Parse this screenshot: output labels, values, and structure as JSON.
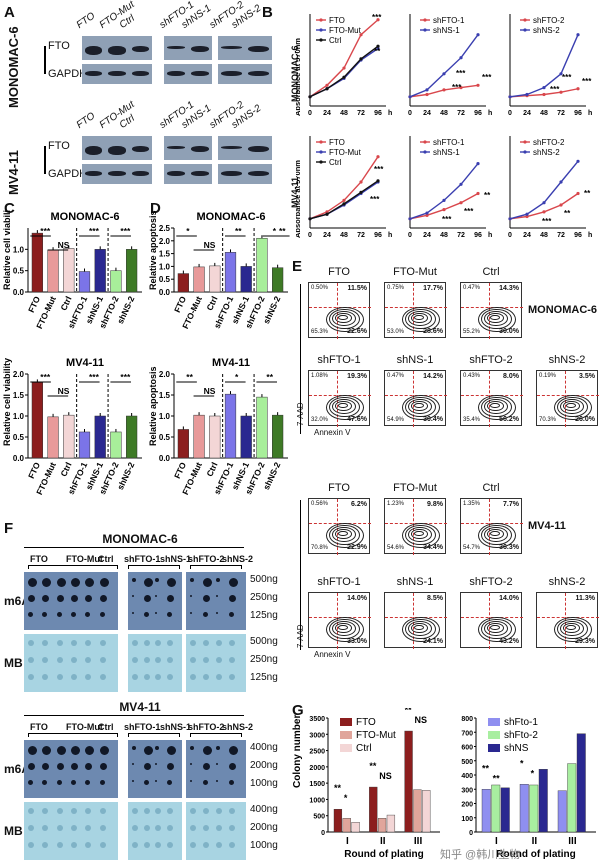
{
  "panels": {
    "A": "A",
    "B": "B",
    "C": "C",
    "D": "D",
    "E": "E",
    "F": "F",
    "G": "G"
  },
  "cell_lines": {
    "mono": "MONOMAC-6",
    "mv": "MV4-11"
  },
  "panelA": {
    "lanes_left": [
      "FTO",
      "FTO-Mut",
      "Ctrl"
    ],
    "lanes_mid": [
      "shFTO-1",
      "shNS-1"
    ],
    "lanes_right": [
      "shFTO-2",
      "shNS-2"
    ],
    "proteins": [
      "FTO",
      "GAPDH"
    ]
  },
  "panelB": {
    "ylabel": "Absorbance at 570nm",
    "xticks": [
      "0",
      "24",
      "48",
      "72",
      "96"
    ],
    "xunit": "h",
    "stars": [
      "***",
      "**",
      "***",
      "***",
      "***",
      "***",
      "***",
      "***",
      "***",
      "***",
      "**",
      "***",
      "***",
      "**",
      "**",
      "***"
    ],
    "legends": [
      [
        "FTO",
        "FTO-Mut",
        "Ctrl"
      ],
      [
        "shFTO-1",
        "shNS-1"
      ],
      [
        "shFTO-2",
        "shNS-2"
      ]
    ],
    "colors": {
      "red": "#d9474c",
      "blue": "#3a3fb0",
      "black": "#111111"
    },
    "chart_data": [
      {
        "type": "line",
        "row": "MONOMAC-6",
        "x": [
          0,
          24,
          48,
          72,
          96
        ],
        "series": [
          {
            "name": "FTO",
            "values": [
              0.08,
              0.18,
              0.33,
              0.62,
              0.75
            ]
          },
          {
            "name": "FTO-Mut",
            "values": [
              0.08,
              0.15,
              0.24,
              0.4,
              0.5
            ]
          },
          {
            "name": "Ctrl",
            "values": [
              0.08,
              0.15,
              0.25,
              0.41,
              0.52
            ]
          }
        ]
      },
      {
        "type": "line",
        "row": "MONOMAC-6",
        "x": [
          0,
          24,
          48,
          72,
          96
        ],
        "series": [
          {
            "name": "shFTO-1",
            "values": [
              0.08,
              0.1,
              0.14,
              0.16,
              0.18
            ]
          },
          {
            "name": "shNS-1",
            "values": [
              0.08,
              0.14,
              0.28,
              0.42,
              0.62
            ]
          }
        ]
      },
      {
        "type": "line",
        "row": "MONOMAC-6",
        "x": [
          0,
          24,
          48,
          72,
          96
        ],
        "series": [
          {
            "name": "shFTO-2",
            "values": [
              0.08,
              0.09,
              0.1,
              0.12,
              0.15
            ]
          },
          {
            "name": "shNS-2",
            "values": [
              0.08,
              0.1,
              0.16,
              0.28,
              0.62
            ]
          }
        ]
      },
      {
        "type": "line",
        "row": "MV4-11",
        "x": [
          0,
          24,
          48,
          72,
          96
        ],
        "series": [
          {
            "name": "FTO",
            "values": [
              0.08,
              0.14,
              0.24,
              0.4,
              0.62
            ]
          },
          {
            "name": "FTO-Mut",
            "values": [
              0.08,
              0.12,
              0.2,
              0.3,
              0.4
            ]
          },
          {
            "name": "Ctrl",
            "values": [
              0.08,
              0.12,
              0.21,
              0.31,
              0.41
            ]
          }
        ]
      },
      {
        "type": "line",
        "row": "MV4-11",
        "x": [
          0,
          24,
          48,
          72,
          96
        ],
        "series": [
          {
            "name": "shFTO-1",
            "values": [
              0.08,
              0.11,
              0.16,
              0.22,
              0.3
            ]
          },
          {
            "name": "shNS-1",
            "values": [
              0.08,
              0.13,
              0.24,
              0.38,
              0.56
            ]
          }
        ]
      },
      {
        "type": "line",
        "row": "MV4-11",
        "x": [
          0,
          24,
          48,
          72,
          96
        ],
        "series": [
          {
            "name": "shFTO-2",
            "values": [
              0.08,
              0.1,
              0.14,
              0.2,
              0.3
            ]
          },
          {
            "name": "shNS-2",
            "values": [
              0.08,
              0.12,
              0.22,
              0.4,
              0.58
            ]
          }
        ]
      }
    ]
  },
  "panelC": {
    "ylabel": "Relative cell viability",
    "categories": [
      "FTO",
      "FTO-Mut",
      "Ctrl",
      "shFTO-1",
      "shNS-1",
      "shFTO-2",
      "shNS-2"
    ],
    "colors": [
      "#8c1e1e",
      "#e89a9a",
      "#f3d6d6",
      "#7b74e8",
      "#2a2890",
      "#a8ee9a",
      "#3e7a26"
    ],
    "chart_data": [
      {
        "type": "bar",
        "title": "MONOMAC-6",
        "values": [
          1.38,
          0.98,
          1.02,
          0.48,
          1.0,
          0.5,
          1.0
        ],
        "ylim": [
          0,
          1.5
        ],
        "yticks": [
          "0.0",
          "0.5",
          "1.0"
        ],
        "stars": [
          "***",
          "NS",
          "***",
          "***"
        ]
      },
      {
        "type": "bar",
        "title": "MV4-11",
        "values": [
          1.8,
          0.98,
          1.02,
          0.62,
          1.0,
          0.62,
          1.0
        ],
        "ylim": [
          0,
          2.0
        ],
        "yticks": [
          "0.0",
          "0.5",
          "1.0",
          "1.5",
          "2.0"
        ],
        "stars": [
          "***",
          "NS",
          "***",
          "***"
        ]
      }
    ]
  },
  "panelD": {
    "ylabel": "Relative apoptosis",
    "categories": [
      "FTO",
      "FTO-Mut",
      "Ctrl",
      "shFTO-1",
      "shNS-1",
      "shFTO-2",
      "shNS-2"
    ],
    "chart_data": [
      {
        "type": "bar",
        "title": "MONOMAC-6",
        "values": [
          0.72,
          0.98,
          1.02,
          1.55,
          1.0,
          2.1,
          0.95
        ],
        "ylim": [
          0,
          2.5
        ],
        "yticks": [
          "0.0",
          "0.5",
          "1.0",
          "1.5",
          "2.0",
          "2.5"
        ],
        "stars": [
          "*",
          "NS",
          "**",
          "*",
          "**"
        ]
      },
      {
        "type": "bar",
        "title": "MV4-11",
        "values": [
          0.68,
          1.02,
          1.0,
          1.52,
          1.0,
          1.45,
          1.02
        ],
        "ylim": [
          0,
          2.0
        ],
        "yticks": [
          "0.0",
          "0.5",
          "1.0",
          "1.5",
          "2.0"
        ],
        "stars": [
          "**",
          "NS",
          "*",
          "**"
        ]
      }
    ]
  },
  "panelE": {
    "xlab": "Annexin V",
    "ylab": "7-AAD",
    "mono": [
      {
        "title": "FTO",
        "tl": "0.50%",
        "tr": "11.5%",
        "bl": "65.3%",
        "br": "22.6%"
      },
      {
        "title": "FTO-Mut",
        "tl": "0.75%",
        "tr": "17.7%",
        "bl": "53.0%",
        "br": "28.6%"
      },
      {
        "title": "Ctrl",
        "tl": "0.47%",
        "tr": "14.3%",
        "bl": "55.2%",
        "br": "30.0%"
      },
      {
        "title": "shFTO-1",
        "tl": "1.08%",
        "tr": "19.3%",
        "bl": "32.0%",
        "br": "47.6%"
      },
      {
        "title": "shNS-1",
        "tl": "0.47%",
        "tr": "14.2%",
        "bl": "54.9%",
        "br": "30.4%"
      },
      {
        "title": "shFTO-2",
        "tl": "0.43%",
        "tr": "8.0%",
        "bl": "35.4%",
        "br": "56.2%"
      },
      {
        "title": "shNS-2",
        "tl": "0.19%",
        "tr": "3.5%",
        "bl": "70.3%",
        "br": "26.0%"
      }
    ],
    "mv": [
      {
        "title": "FTO",
        "tl": "0.56%",
        "tr": "6.2%",
        "bl": "70.8%",
        "br": "22.9%"
      },
      {
        "title": "FTO-Mut",
        "tl": "1.23%",
        "tr": "9.8%",
        "bl": "54.6%",
        "br": "34.4%"
      },
      {
        "title": "Ctrl",
        "tl": "1.35%",
        "tr": "7.7%",
        "bl": "54.7%",
        "br": "36.3%"
      },
      {
        "title": "shFTO-1",
        "tl": "",
        "tr": "14.0%",
        "bl": "",
        "br": "33.0%"
      },
      {
        "title": "shNS-1",
        "tl": "",
        "tr": "8.5%",
        "bl": "",
        "br": "24.1%"
      },
      {
        "title": "shFTO-2",
        "tl": "",
        "tr": "14.0%",
        "bl": "",
        "br": "43.2%"
      },
      {
        "title": "shNS-2",
        "tl": "",
        "tr": "11.3%",
        "bl": "",
        "br": "29.3%"
      }
    ]
  },
  "panelF": {
    "lanes": [
      "FTO",
      "FTO-Mut",
      "Ctrl",
      "shFTO-1",
      "shNS-1",
      "shFTO-2",
      "shNS-2"
    ],
    "rows": [
      "m6A",
      "MB"
    ],
    "conc_mono": [
      "500ng",
      "250ng",
      "125ng"
    ],
    "conc_mv": [
      "400ng",
      "200ng",
      "100ng"
    ]
  },
  "panelG": {
    "ylabel": "Colony number",
    "xlabel": "Round of plating",
    "rounds": [
      "I",
      "II",
      "III"
    ],
    "left_legend": [
      "FTO",
      "FTO-Mut",
      "Ctrl"
    ],
    "right_legend": [
      "shFto-1",
      "shFto-2",
      "shNS"
    ],
    "yticks": [
      "0",
      "500",
      "1000",
      "1500",
      "2000",
      "2500",
      "3000",
      "3500"
    ],
    "chart_data": [
      {
        "type": "bar",
        "categories": [
          "I",
          "II",
          "III"
        ],
        "ylim": [
          0,
          3500
        ],
        "series": [
          {
            "name": "FTO",
            "values": [
              700,
              1380,
              3100
            ]
          },
          {
            "name": "FTO-Mut",
            "values": [
              420,
              420,
              1300
            ]
          },
          {
            "name": "Ctrl",
            "values": [
              300,
              520,
              1280
            ]
          }
        ],
        "stars": [
          "**",
          "*",
          "**",
          "NS",
          "**",
          "NS"
        ]
      },
      {
        "type": "bar",
        "categories": [
          "I",
          "II",
          "III"
        ],
        "ylim": [
          0,
          800
        ],
        "series": [
          {
            "name": "shFto-1",
            "values": [
              300,
              335,
              290
            ]
          },
          {
            "name": "shFto-2",
            "values": [
              330,
              330,
              480
            ]
          },
          {
            "name": "shNS",
            "values": [
              310,
              440,
              690
            ]
          }
        ],
        "stars": [
          "**",
          "**",
          "*",
          "*"
        ]
      }
    ],
    "watermark": "知乎 @韩川生物"
  }
}
